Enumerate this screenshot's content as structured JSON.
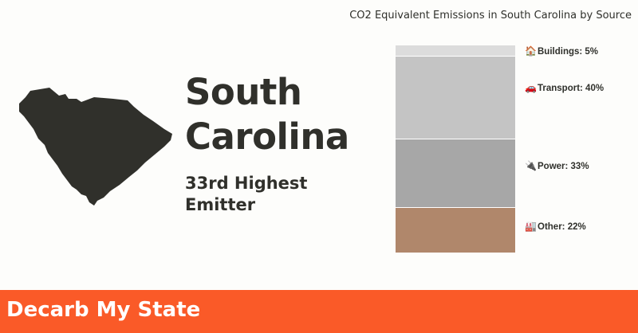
{
  "state": {
    "name_line1": "South",
    "name_line2": "Carolina",
    "rank_line1": "33rd Highest",
    "rank_line2": "Emitter",
    "map_color": "#30302b"
  },
  "footer": {
    "brand": "Decarb My State",
    "color": "#fa5a28"
  },
  "chart_data": {
    "type": "bar",
    "stacked": true,
    "title": "CO2 Equivalent Emissions in South Carolina by Source",
    "unit": "%",
    "series": [
      {
        "label": "Buildings: 5%",
        "icon": "house-icon",
        "glyph": "🏠",
        "value": 5,
        "color": "#dcdcdc"
      },
      {
        "label": "Transport: 40%",
        "icon": "car-icon",
        "glyph": "🚗",
        "value": 40,
        "color": "#c4c4c4"
      },
      {
        "label": "Power: 33%",
        "icon": "plug-icon",
        "glyph": "🔌",
        "value": 33,
        "color": "#a7a7a7"
      },
      {
        "label": "Other: 22%",
        "icon": "factory-icon",
        "glyph": "🏭",
        "value": 22,
        "color": "#b0876b"
      }
    ]
  }
}
